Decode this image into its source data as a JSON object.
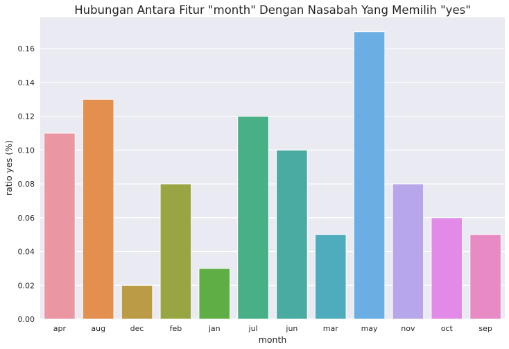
{
  "chart_data": {
    "type": "bar",
    "title": "Hubungan Antara Fitur \"month\" Dengan Nasabah Yang Memilih \"yes\"",
    "xlabel": "month",
    "ylabel": "ratio yes (%)",
    "categories": [
      "apr",
      "aug",
      "dec",
      "feb",
      "jan",
      "jul",
      "jun",
      "mar",
      "may",
      "nov",
      "oct",
      "sep"
    ],
    "values": [
      0.11,
      0.13,
      0.02,
      0.08,
      0.03,
      0.12,
      0.1,
      0.05,
      0.17,
      0.08,
      0.06,
      0.05
    ],
    "colors": [
      "#ea96a3",
      "#e38f50",
      "#bb9b46",
      "#99a442",
      "#5fae45",
      "#48af87",
      "#4aaba2",
      "#4eacbc",
      "#6aaee3",
      "#b8a6ea",
      "#e18ae8",
      "#e88bc4"
    ],
    "yticks": [
      "0.00",
      "0.02",
      "0.04",
      "0.06",
      "0.08",
      "0.10",
      "0.12",
      "0.14",
      "0.16"
    ],
    "ylim": [
      0,
      0.1785
    ],
    "grid": true,
    "background": "#eaeaf2"
  }
}
